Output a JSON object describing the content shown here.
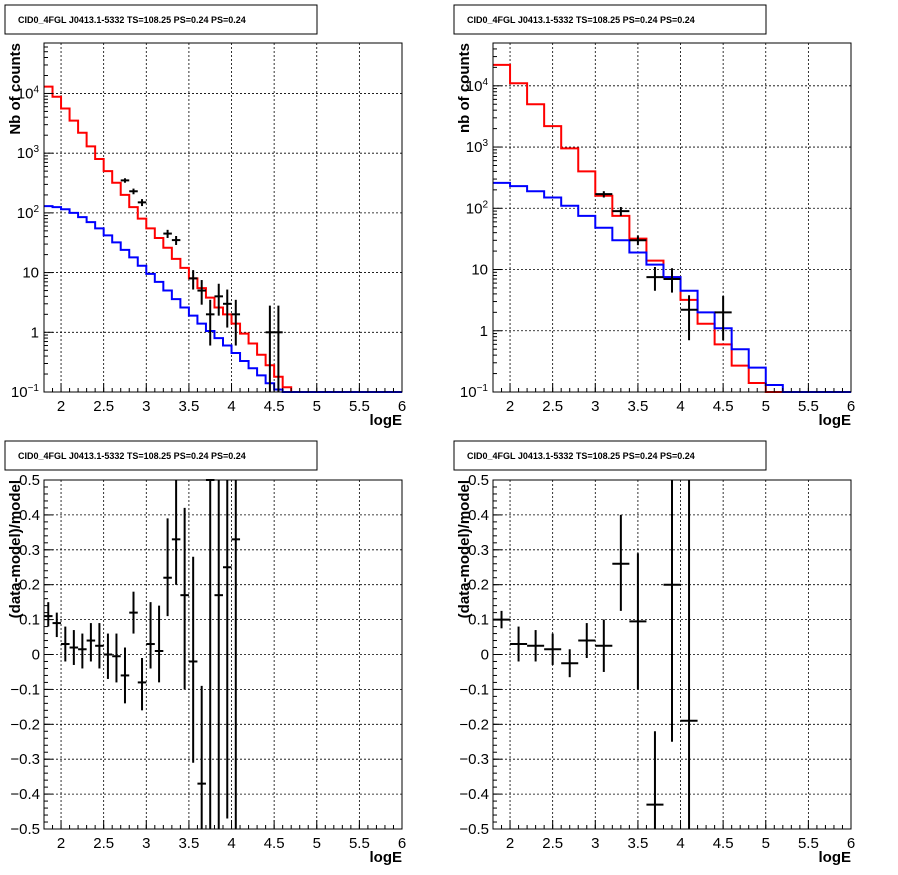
{
  "colors": {
    "model_total": "#ff0000",
    "model_background": "#0000ff",
    "data": "#000000",
    "grid": "#000000"
  },
  "chart_data": [
    {
      "type": "line",
      "title": "CID0_4FGL J0413.1-5332 TS=108.25 PS=0.24 PS=0.24",
      "xlabel": "logE",
      "ylabel": "Nb of counts",
      "xlim": [
        1.8,
        6.0
      ],
      "ylim": [
        0.1,
        70000
      ],
      "yscale": "log",
      "grid": true,
      "xticks": [
        {
          "v": 2,
          "t": "2"
        },
        {
          "v": 2.5,
          "t": "2.5"
        },
        {
          "v": 3,
          "t": "3"
        },
        {
          "v": 3.5,
          "t": "3.5"
        },
        {
          "v": 4,
          "t": "4"
        },
        {
          "v": 4.5,
          "t": "4.5"
        },
        {
          "v": 5,
          "t": "5"
        },
        {
          "v": 5.5,
          "t": "5.5"
        },
        {
          "v": 6,
          "t": "6"
        }
      ],
      "yticks": [
        {
          "v": 0.1,
          "b": "10",
          "e": "−1"
        },
        {
          "v": 1,
          "b": "1",
          "e": ""
        },
        {
          "v": 10,
          "b": "10",
          "e": ""
        },
        {
          "v": 100,
          "b": "10",
          "e": "2"
        },
        {
          "v": 1000,
          "b": "10",
          "e": "3"
        },
        {
          "v": 10000,
          "b": "10",
          "e": "4"
        }
      ],
      "bin_width": 0.1,
      "series": [
        {
          "kind": "hist",
          "role": "model_total",
          "x": [
            1.8,
            1.9,
            2.0,
            2.1,
            2.2,
            2.3,
            2.4,
            2.5,
            2.6,
            2.7,
            2.8,
            2.9,
            3.0,
            3.1,
            3.2,
            3.3,
            3.4,
            3.5,
            3.6,
            3.7,
            3.8,
            3.9,
            4.0,
            4.1,
            4.2,
            4.3,
            4.4,
            4.5,
            4.6,
            4.7,
            4.8,
            4.9,
            5.0,
            5.1,
            5.2,
            5.3,
            5.4,
            5.5,
            5.6,
            5.7,
            5.8,
            5.9
          ],
          "values": [
            13000,
            8800,
            5600,
            3500,
            2200,
            1300,
            800,
            500,
            320,
            200,
            125,
            80,
            55,
            38,
            26,
            17,
            12,
            8,
            5.5,
            3.8,
            2.6,
            2.0,
            1.4,
            0.95,
            0.65,
            0.42,
            0.28,
            0.18,
            0.12,
            0.1,
            0.1,
            0.1,
            0.1,
            0.1,
            0.1,
            0.1,
            0.1,
            0.1,
            0.1,
            0.1,
            0.1,
            0.1
          ]
        },
        {
          "kind": "hist",
          "role": "model_background",
          "x": [
            1.8,
            1.9,
            2.0,
            2.1,
            2.2,
            2.3,
            2.4,
            2.5,
            2.6,
            2.7,
            2.8,
            2.9,
            3.0,
            3.1,
            3.2,
            3.3,
            3.4,
            3.5,
            3.6,
            3.7,
            3.8,
            3.9,
            4.0,
            4.1,
            4.2,
            4.3,
            4.4,
            4.5,
            4.6,
            4.7,
            4.8,
            4.9,
            5.0,
            5.1,
            5.2,
            5.3,
            5.4,
            5.5,
            5.6,
            5.7,
            5.8,
            5.9
          ],
          "values": [
            130,
            125,
            115,
            100,
            85,
            70,
            55,
            42,
            32,
            24,
            18,
            13,
            9.5,
            7,
            5,
            3.6,
            2.6,
            1.9,
            1.4,
            1.05,
            0.8,
            0.6,
            0.45,
            0.33,
            0.25,
            0.19,
            0.14,
            0.11,
            0.1,
            0.1,
            0.1,
            0.1,
            0.1,
            0.1,
            0.1,
            0.1,
            0.1,
            0.1,
            0.1,
            0.1,
            0.1,
            0.1
          ]
        },
        {
          "kind": "points",
          "role": "data",
          "x": [
            2.75,
            2.85,
            2.95,
            3.25,
            3.35,
            3.55,
            3.65,
            3.75,
            3.85,
            3.95,
            4.05,
            4.45,
            4.55
          ],
          "y": [
            350,
            230,
            150,
            45,
            35,
            8,
            5,
            2,
            4,
            3,
            2,
            1,
            1
          ],
          "ylo": [
            320,
            205,
            130,
            38,
            29,
            5.2,
            2.9,
            0.6,
            1.9,
            1.2,
            0.6,
            0.1,
            0.1
          ],
          "yhi": [
            380,
            255,
            170,
            52,
            41,
            11,
            7.5,
            3.5,
            6.5,
            5.2,
            3.5,
            2.8,
            2.8
          ]
        }
      ]
    },
    {
      "type": "line",
      "title": "CID0_4FGL J0413.1-5332 TS=108.25 PS=0.24 PS=0.24",
      "xlabel": "logE",
      "ylabel": "nb of counts",
      "xlim": [
        1.8,
        6.0
      ],
      "ylim": [
        0.1,
        50000
      ],
      "yscale": "log",
      "grid": true,
      "xticks": [
        {
          "v": 2,
          "t": "2"
        },
        {
          "v": 2.5,
          "t": "2.5"
        },
        {
          "v": 3,
          "t": "3"
        },
        {
          "v": 3.5,
          "t": "3.5"
        },
        {
          "v": 4,
          "t": "4"
        },
        {
          "v": 4.5,
          "t": "4.5"
        },
        {
          "v": 5,
          "t": "5"
        },
        {
          "v": 5.5,
          "t": "5.5"
        },
        {
          "v": 6,
          "t": "6"
        }
      ],
      "yticks": [
        {
          "v": 0.1,
          "b": "10",
          "e": "−1"
        },
        {
          "v": 1,
          "b": "1",
          "e": ""
        },
        {
          "v": 10,
          "b": "10",
          "e": ""
        },
        {
          "v": 100,
          "b": "10",
          "e": "2"
        },
        {
          "v": 1000,
          "b": "10",
          "e": "3"
        },
        {
          "v": 10000,
          "b": "10",
          "e": "4"
        }
      ],
      "bin_width": 0.2,
      "series": [
        {
          "kind": "hist",
          "role": "model_total",
          "x": [
            1.8,
            2.0,
            2.2,
            2.4,
            2.6,
            2.8,
            3.0,
            3.2,
            3.4,
            3.6,
            3.8,
            4.0,
            4.2,
            4.4,
            4.6,
            4.8,
            5.0,
            5.2,
            5.4,
            5.6,
            5.8
          ],
          "values": [
            22000,
            11000,
            5000,
            2200,
            950,
            400,
            160,
            75,
            32,
            14,
            7.5,
            3.2,
            1.3,
            0.6,
            0.27,
            0.14,
            0.1,
            0.1,
            0.1,
            0.1,
            0.1
          ]
        },
        {
          "kind": "hist",
          "role": "model_background",
          "x": [
            1.8,
            2.0,
            2.2,
            2.4,
            2.6,
            2.8,
            3.0,
            3.2,
            3.4,
            3.6,
            3.8,
            4.0,
            4.2,
            4.4,
            4.6,
            4.8,
            5.0,
            5.2,
            5.4,
            5.6,
            5.8
          ],
          "values": [
            260,
            230,
            190,
            150,
            110,
            75,
            48,
            30,
            19,
            12,
            7.5,
            4.5,
            2.0,
            1.1,
            0.5,
            0.25,
            0.13,
            0.1,
            0.1,
            0.1,
            0.1
          ]
        },
        {
          "kind": "points",
          "role": "data",
          "x": [
            3.1,
            3.3,
            3.5,
            3.7,
            3.9,
            4.1,
            4.5
          ],
          "y": [
            170,
            90,
            30,
            7.5,
            7,
            2.2,
            2
          ],
          "ylo": [
            150,
            75,
            25,
            4.5,
            4.2,
            0.7,
            0.7
          ],
          "yhi": [
            190,
            105,
            36,
            11,
            10.5,
            3.8,
            3.7
          ]
        }
      ]
    },
    {
      "type": "scatter",
      "title": "CID0_4FGL J0413.1-5332 TS=108.25 PS=0.24 PS=0.24",
      "xlabel": "logE",
      "ylabel": "(data-model)/model",
      "xlim": [
        1.8,
        6.0
      ],
      "ylim": [
        -0.5,
        0.5
      ],
      "yscale": "linear",
      "grid": true,
      "xticks": [
        {
          "v": 2,
          "t": "2"
        },
        {
          "v": 2.5,
          "t": "2.5"
        },
        {
          "v": 3,
          "t": "3"
        },
        {
          "v": 3.5,
          "t": "3.5"
        },
        {
          "v": 4,
          "t": "4"
        },
        {
          "v": 4.5,
          "t": "4.5"
        },
        {
          "v": 5,
          "t": "5"
        },
        {
          "v": 5.5,
          "t": "5.5"
        },
        {
          "v": 6,
          "t": "6"
        }
      ],
      "yticks": [
        {
          "v": -0.5,
          "t": "−0.5"
        },
        {
          "v": -0.4,
          "t": "−0.4"
        },
        {
          "v": -0.3,
          "t": "−0.3"
        },
        {
          "v": -0.2,
          "t": "−0.2"
        },
        {
          "v": -0.1,
          "t": "−0.1"
        },
        {
          "v": 0,
          "t": "0"
        },
        {
          "v": 0.1,
          "t": "0.1"
        },
        {
          "v": 0.2,
          "t": "0.2"
        },
        {
          "v": 0.3,
          "t": "0.3"
        },
        {
          "v": 0.4,
          "t": "0.4"
        },
        {
          "v": 0.5,
          "t": "0.5"
        }
      ],
      "bin_width": 0.1,
      "series": [
        {
          "kind": "points",
          "role": "data",
          "x": [
            1.85,
            1.95,
            2.05,
            2.15,
            2.25,
            2.35,
            2.45,
            2.55,
            2.65,
            2.75,
            2.85,
            2.95,
            3.05,
            3.15,
            3.25,
            3.35,
            3.45,
            3.55,
            3.65,
            3.75,
            3.85,
            3.95,
            4.05
          ],
          "y": [
            0.11,
            0.09,
            0.03,
            0.02,
            0.015,
            0.04,
            0.025,
            0.0,
            -0.005,
            -0.06,
            0.12,
            -0.08,
            0.03,
            0.01,
            0.22,
            0.33,
            0.17,
            -0.02,
            -0.37,
            0.5,
            0.17,
            0.25,
            0.33
          ],
          "ylo": [
            0.08,
            0.05,
            -0.02,
            -0.03,
            -0.04,
            -0.02,
            -0.04,
            -0.07,
            -0.08,
            -0.14,
            0.06,
            -0.16,
            -0.04,
            -0.08,
            0.11,
            0.2,
            -0.1,
            -0.31,
            -0.5,
            -0.5,
            -0.5,
            -0.47,
            -0.5
          ],
          "yhi": [
            0.15,
            0.12,
            0.08,
            0.07,
            0.06,
            0.09,
            0.09,
            0.06,
            0.06,
            0.02,
            0.18,
            -0.01,
            0.15,
            0.14,
            0.39,
            0.5,
            0.42,
            0.28,
            -0.09,
            0.5,
            0.5,
            0.5,
            0.5
          ]
        }
      ]
    },
    {
      "type": "scatter",
      "title": "CID0_4FGL J0413.1-5332 TS=108.25 PS=0.24 PS=0.24",
      "xlabel": "logE",
      "ylabel": "(data-model)/model",
      "xlim": [
        1.8,
        6.0
      ],
      "ylim": [
        -0.5,
        0.5
      ],
      "yscale": "linear",
      "grid": true,
      "xticks": [
        {
          "v": 2,
          "t": "2"
        },
        {
          "v": 2.5,
          "t": "2.5"
        },
        {
          "v": 3,
          "t": "3"
        },
        {
          "v": 3.5,
          "t": "3.5"
        },
        {
          "v": 4,
          "t": "4"
        },
        {
          "v": 4.5,
          "t": "4.5"
        },
        {
          "v": 5,
          "t": "5"
        },
        {
          "v": 5.5,
          "t": "5.5"
        },
        {
          "v": 6,
          "t": "6"
        }
      ],
      "yticks": [
        {
          "v": -0.5,
          "t": "−0.5"
        },
        {
          "v": -0.4,
          "t": "−0.4"
        },
        {
          "v": -0.3,
          "t": "−0.3"
        },
        {
          "v": -0.2,
          "t": "−0.2"
        },
        {
          "v": -0.1,
          "t": "−0.1"
        },
        {
          "v": 0,
          "t": "0"
        },
        {
          "v": 0.1,
          "t": "0.1"
        },
        {
          "v": 0.2,
          "t": "0.2"
        },
        {
          "v": 0.3,
          "t": "0.3"
        },
        {
          "v": 0.4,
          "t": "0.4"
        },
        {
          "v": 0.5,
          "t": "0.5"
        }
      ],
      "bin_width": 0.2,
      "series": [
        {
          "kind": "points",
          "role": "data",
          "x": [
            1.9,
            2.1,
            2.3,
            2.5,
            2.7,
            2.9,
            3.1,
            3.3,
            3.5,
            3.7,
            3.9,
            4.1
          ],
          "y": [
            0.1,
            0.03,
            0.025,
            0.015,
            -0.025,
            0.04,
            0.025,
            0.26,
            0.095,
            -0.43,
            0.2,
            -0.19
          ],
          "ylo": [
            0.075,
            -0.02,
            -0.02,
            -0.03,
            -0.065,
            -0.01,
            -0.05,
            0.125,
            -0.1,
            -0.5,
            -0.25,
            -0.5
          ],
          "yhi": [
            0.125,
            0.08,
            0.07,
            0.06,
            0.015,
            0.09,
            0.1,
            0.4,
            0.29,
            -0.22,
            0.5,
            0.5
          ]
        }
      ]
    }
  ]
}
